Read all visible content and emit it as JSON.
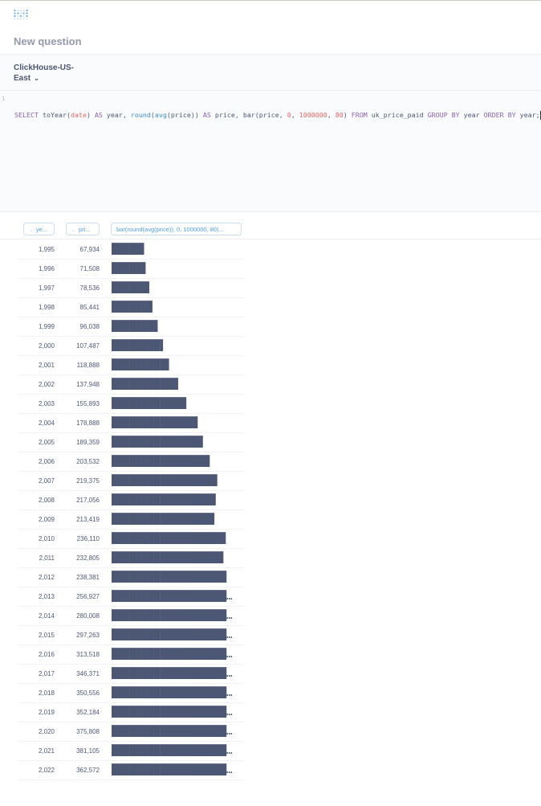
{
  "header": {
    "title": "New question",
    "logo": "metabase-logo"
  },
  "database": {
    "name": "ClickHouse-US-East",
    "chevron": "chevron-down-icon"
  },
  "editor": {
    "line_number": "1",
    "query": "SELECT toYear(date) AS year, round(avg(price)) AS price, bar(price, 0, 1000000, 80) FROM uk_price_paid GROUP BY year ORDER BY year;"
  },
  "table": {
    "columns": [
      {
        "label": "ye..."
      },
      {
        "label": "pri..."
      },
      {
        "label": "bar(round(avg(price)), 0, 1000000, 80)..."
      }
    ],
    "rows": [
      {
        "year": "1,995",
        "price": "67,934",
        "bar": "█████▍"
      },
      {
        "year": "1,996",
        "price": "71,508",
        "bar": "█████▋"
      },
      {
        "year": "1,997",
        "price": "78,536",
        "bar": "██████▎"
      },
      {
        "year": "1,998",
        "price": "85,441",
        "bar": "██████▊"
      },
      {
        "year": "1,999",
        "price": "96,038",
        "bar": "███████▋"
      },
      {
        "year": "2,000",
        "price": "107,487",
        "bar": "████████▌"
      },
      {
        "year": "2,001",
        "price": "118,888",
        "bar": "█████████▌"
      },
      {
        "year": "2,002",
        "price": "137,948",
        "bar": "███████████"
      },
      {
        "year": "2,003",
        "price": "155,893",
        "bar": "████████████▍"
      },
      {
        "year": "2,004",
        "price": "178,888",
        "bar": "██████████████▎"
      },
      {
        "year": "2,005",
        "price": "189,359",
        "bar": "███████████████▏"
      },
      {
        "year": "2,006",
        "price": "203,532",
        "bar": "████████████████▎"
      },
      {
        "year": "2,007",
        "price": "219,375",
        "bar": "█████████████████▌"
      },
      {
        "year": "2,008",
        "price": "217,056",
        "bar": "█████████████████▎"
      },
      {
        "year": "2,009",
        "price": "213,419",
        "bar": "█████████████████"
      },
      {
        "year": "2,010",
        "price": "236,110",
        "bar": "██████████████████▉"
      },
      {
        "year": "2,011",
        "price": "232,805",
        "bar": "██████████████████▌"
      },
      {
        "year": "2,012",
        "price": "238,381",
        "bar": "███████████████████"
      },
      {
        "year": "2,013",
        "price": "256,927",
        "bar": "████████████████████▌"
      },
      {
        "year": "2,014",
        "price": "280,008",
        "bar": "██████████████████████▍"
      },
      {
        "year": "2,015",
        "price": "297,263",
        "bar": "███████████████████████▊"
      },
      {
        "year": "2,016",
        "price": "313,518",
        "bar": "█████████████████████████"
      },
      {
        "year": "2,017",
        "price": "346,371",
        "bar": "███████████████████████████▋"
      },
      {
        "year": "2,018",
        "price": "350,556",
        "bar": "████████████████████████████"
      },
      {
        "year": "2,019",
        "price": "352,184",
        "bar": "████████████████████████████▏"
      },
      {
        "year": "2,020",
        "price": "375,808",
        "bar": "██████████████████████████████"
      },
      {
        "year": "2,021",
        "price": "381,105",
        "bar": "██████████████████████████████▍"
      },
      {
        "year": "2,022",
        "price": "362,572",
        "bar": "█████████████████████████████"
      }
    ]
  }
}
